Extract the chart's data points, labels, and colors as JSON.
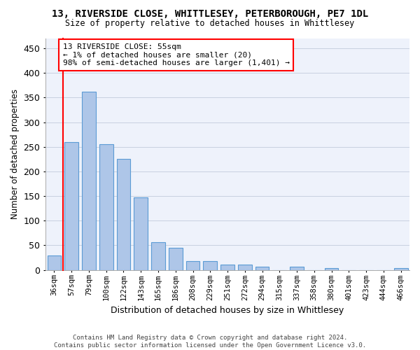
{
  "title": "13, RIVERSIDE CLOSE, WHITTLESEY, PETERBOROUGH, PE7 1DL",
  "subtitle": "Size of property relative to detached houses in Whittlesey",
  "xlabel": "Distribution of detached houses by size in Whittlesey",
  "ylabel": "Number of detached properties",
  "bar_color": "#aec6e8",
  "bar_edge_color": "#5b9bd5",
  "background_color": "#eef2fb",
  "grid_color": "#c8d0e0",
  "categories": [
    "36sqm",
    "57sqm",
    "79sqm",
    "100sqm",
    "122sqm",
    "143sqm",
    "165sqm",
    "186sqm",
    "208sqm",
    "229sqm",
    "251sqm",
    "272sqm",
    "294sqm",
    "315sqm",
    "337sqm",
    "358sqm",
    "380sqm",
    "401sqm",
    "423sqm",
    "444sqm",
    "466sqm"
  ],
  "values": [
    30,
    260,
    362,
    256,
    225,
    148,
    57,
    45,
    18,
    18,
    11,
    11,
    7,
    0,
    6,
    0,
    4,
    0,
    0,
    0,
    4
  ],
  "ylim": [
    0,
    470
  ],
  "yticks": [
    0,
    50,
    100,
    150,
    200,
    250,
    300,
    350,
    400,
    450
  ],
  "annotation_line1": "13 RIVERSIDE CLOSE: 55sqm",
  "annotation_line2": "← 1% of detached houses are smaller (20)",
  "annotation_line3": "98% of semi-detached houses are larger (1,401) →",
  "footnote": "Contains HM Land Registry data © Crown copyright and database right 2024.\nContains public sector information licensed under the Open Government Licence v3.0."
}
